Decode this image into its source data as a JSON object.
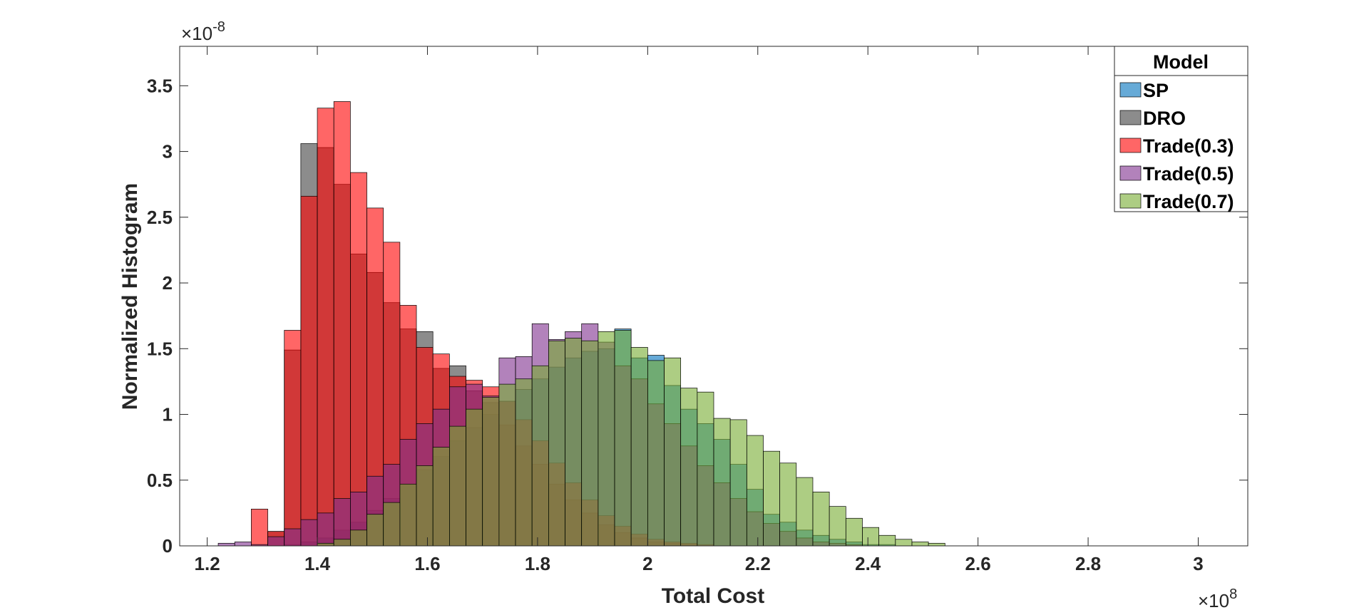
{
  "chart_data": {
    "type": "bar",
    "subtype": "overlaid-histogram",
    "xlabel": "Total Cost",
    "ylabel": "Normalized Histogram",
    "x_exponent": "10^8",
    "y_exponent": "10^-8",
    "x_exponent_base": "×10",
    "x_exponent_power": "8",
    "y_exponent_base": "×10",
    "y_exponent_power": "-8",
    "xlim": [
      1.15,
      3.09
    ],
    "ylim": [
      0,
      3.8
    ],
    "xticks": [
      "1.2",
      "1.4",
      "1.6",
      "1.8",
      "2",
      "2.2",
      "2.4",
      "2.6",
      "2.8",
      "3"
    ],
    "yticks": [
      "0",
      "0.5",
      "1",
      "1.5",
      "2",
      "2.5",
      "3",
      "3.5"
    ],
    "grid": false,
    "legend_title": "Model",
    "legend_position": "top-right",
    "bin_width": 0.03,
    "series": [
      {
        "name": "SP",
        "color": "#0072BD",
        "bin_start": 1.34,
        "values": [
          0.01,
          0.03,
          0.06,
          0.12,
          0.18,
          0.27,
          0.36,
          0.46,
          0.58,
          0.68,
          0.8,
          0.9,
          1.0,
          1.1,
          1.19,
          1.27,
          1.36,
          1.43,
          1.48,
          1.5,
          1.65,
          1.43,
          1.45,
          1.22,
          1.04,
          0.93,
          0.81,
          0.62,
          0.43,
          0.24,
          0.18,
          0.12,
          0.08,
          0.05,
          0.03,
          0.01,
          0.01
        ]
      },
      {
        "name": "DRO",
        "color": "#404040",
        "bin_start": 1.31,
        "values": [
          0.11,
          1.49,
          3.06,
          3.03,
          2.75,
          2.22,
          2.08,
          1.85,
          1.65,
          1.63,
          1.35,
          1.37,
          1.18,
          1.09,
          0.92,
          0.76,
          0.62,
          0.47,
          0.35,
          0.25,
          0.16,
          0.1,
          0.06,
          0.03,
          0.02,
          0.01
        ]
      },
      {
        "name": "Trade(0.3)",
        "color": "#FF0000",
        "bin_start": 1.28,
        "values": [
          0.28,
          0.11,
          1.64,
          2.66,
          3.33,
          3.38,
          2.84,
          2.57,
          2.31,
          1.83,
          1.51,
          1.46,
          1.29,
          1.26,
          1.21,
          1.1,
          0.96,
          0.8,
          0.63,
          0.48,
          0.35,
          0.23,
          0.15,
          0.09,
          0.05,
          0.03,
          0.02,
          0.01
        ]
      },
      {
        "name": "Trade(0.5)",
        "color": "#7E2F8E",
        "bin_start": 1.22,
        "values": [
          0.02,
          0.03,
          0.01,
          0.07,
          0.13,
          0.2,
          0.25,
          0.36,
          0.41,
          0.53,
          0.62,
          0.81,
          0.93,
          1.04,
          1.21,
          1.23,
          1.14,
          1.43,
          1.44,
          1.69,
          1.57,
          1.63,
          1.69,
          1.55,
          1.37,
          1.27,
          1.08,
          0.93,
          0.76,
          0.61,
          0.48,
          0.36,
          0.26,
          0.17,
          0.11,
          0.06,
          0.03,
          0.02,
          0.01
        ]
      },
      {
        "name": "Trade(0.7)",
        "color": "#77AC30",
        "bin_start": 1.4,
        "values": [
          0.02,
          0.05,
          0.12,
          0.24,
          0.33,
          0.47,
          0.61,
          0.75,
          0.91,
          1.04,
          1.13,
          1.23,
          1.27,
          1.37,
          1.56,
          1.58,
          1.56,
          1.63,
          1.64,
          1.51,
          1.41,
          1.43,
          1.2,
          1.17,
          0.97,
          0.96,
          0.84,
          0.72,
          0.63,
          0.52,
          0.41,
          0.3,
          0.21,
          0.14,
          0.08,
          0.05,
          0.03,
          0.02
        ]
      }
    ]
  }
}
